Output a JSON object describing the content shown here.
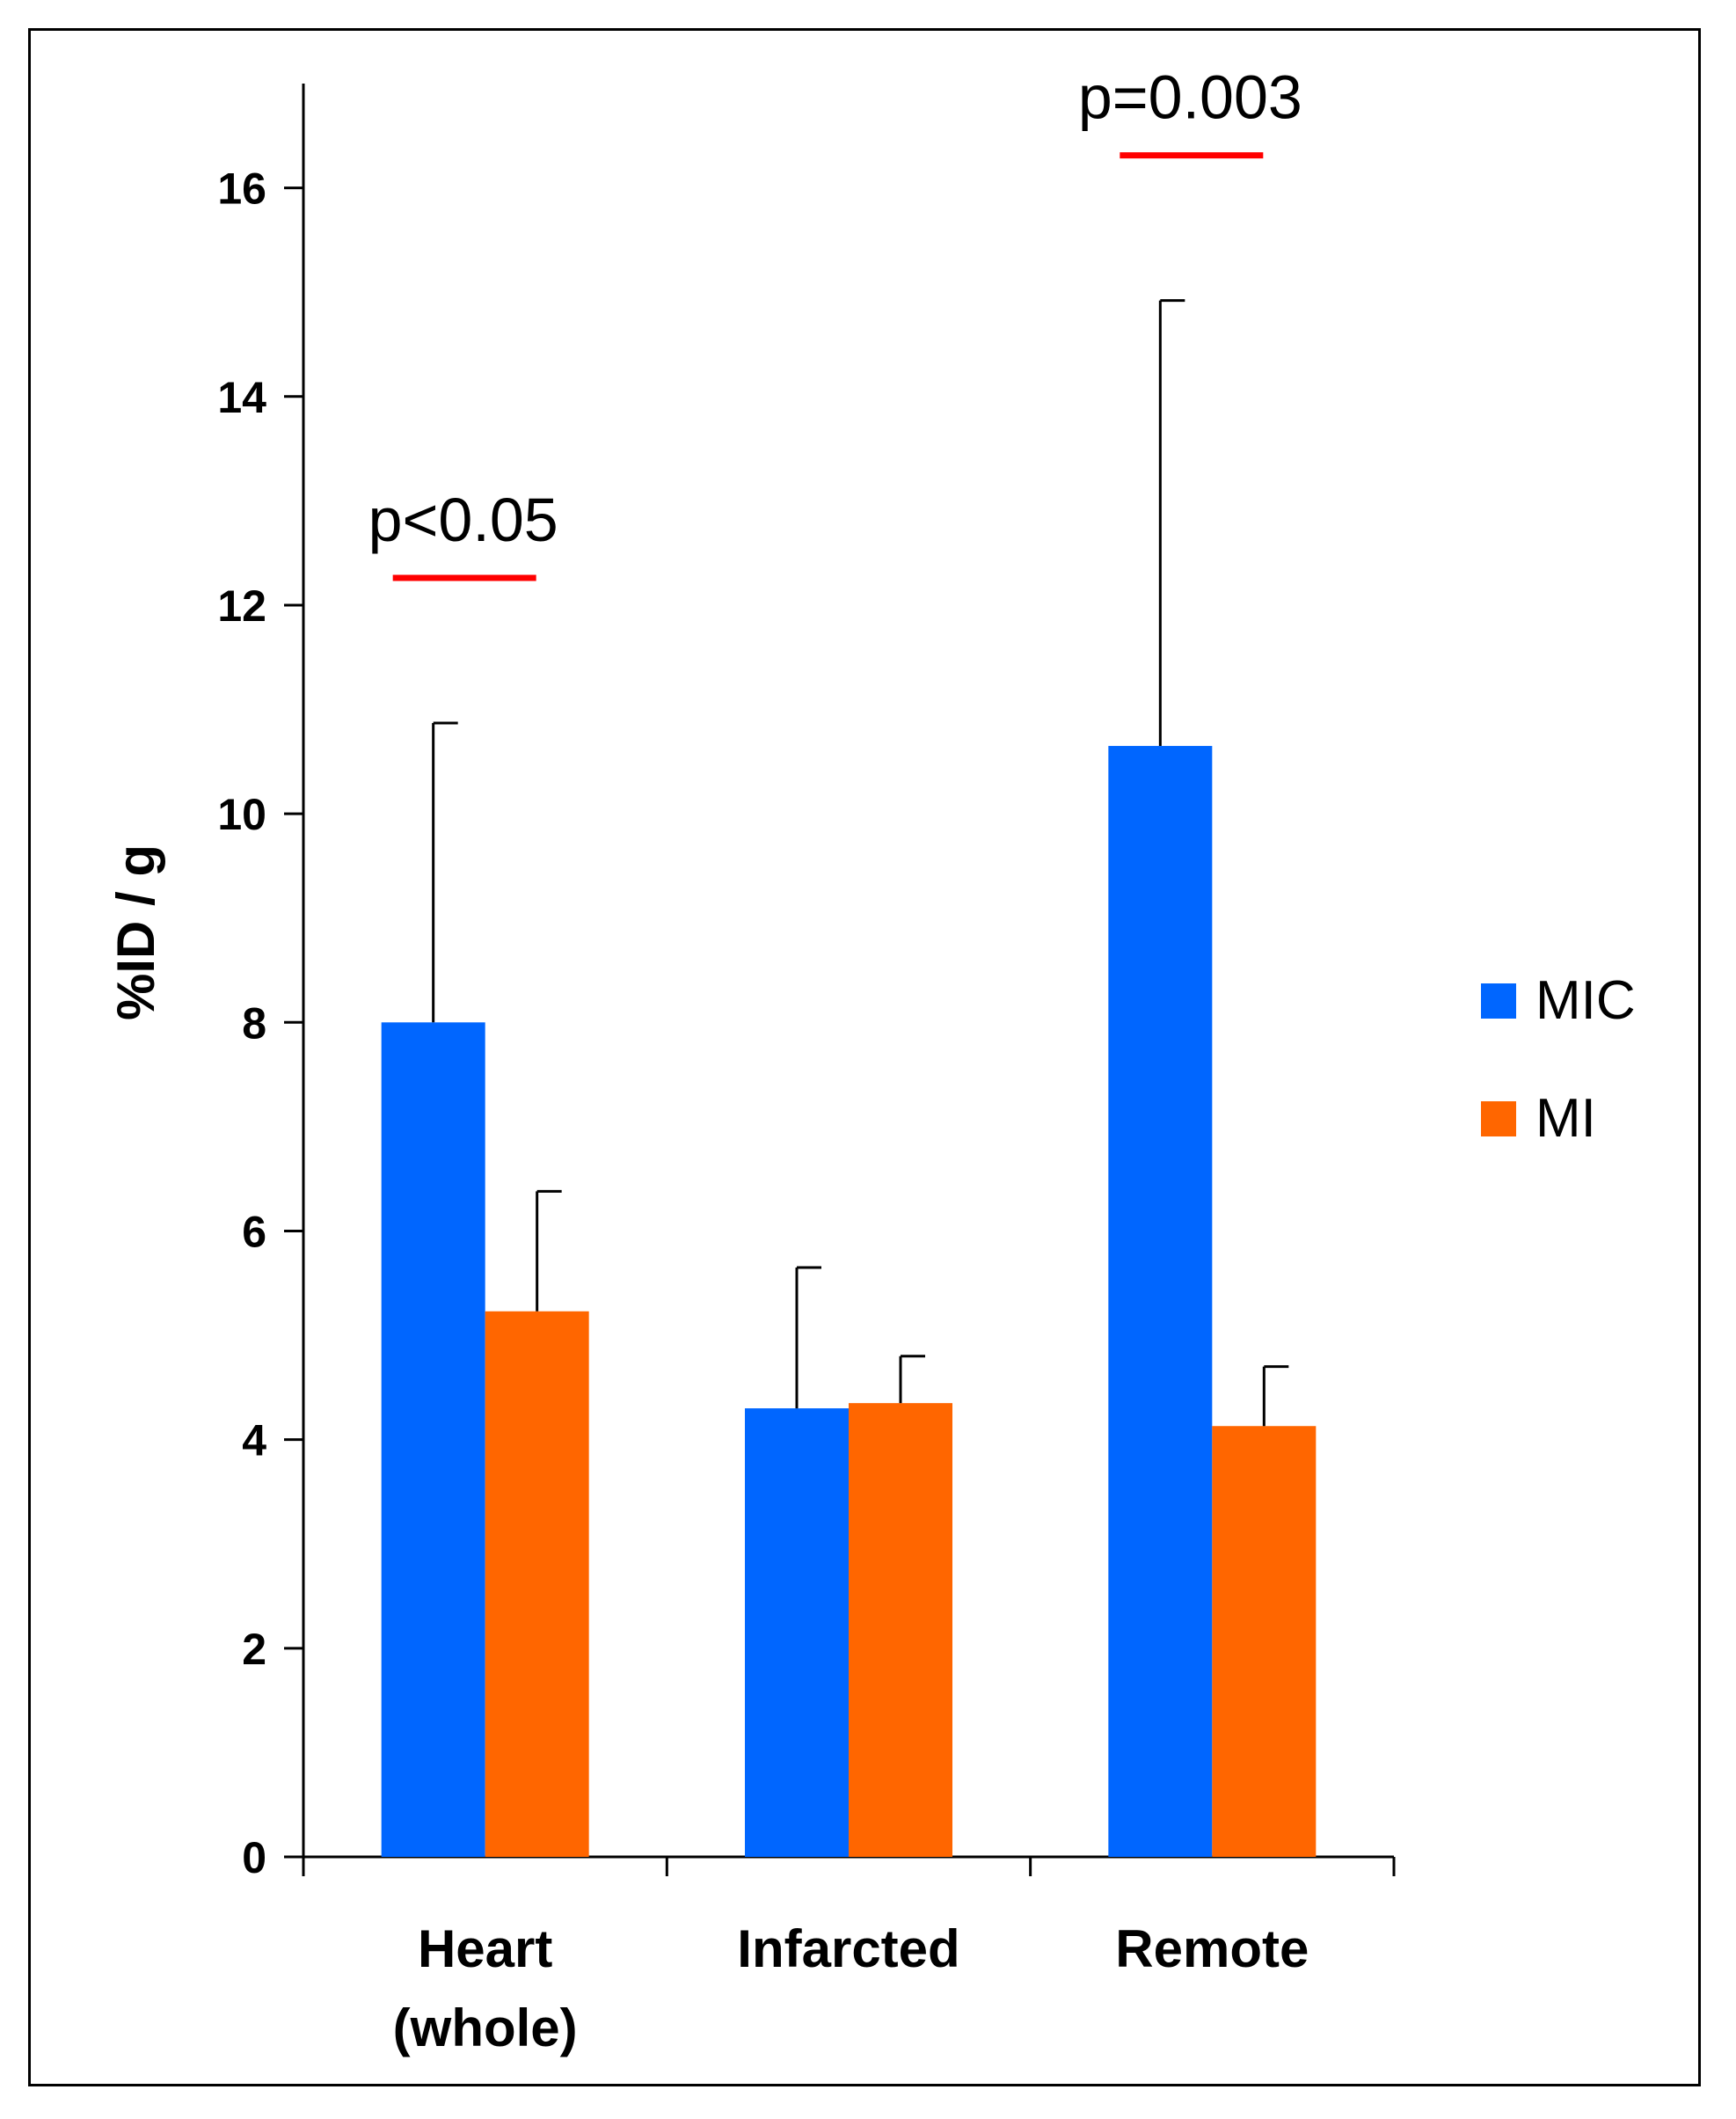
{
  "chart_data": {
    "type": "bar",
    "title": "",
    "xlabel": "",
    "ylabel": "%ID / g",
    "ylim": [
      0,
      17
    ],
    "yticks": [
      0,
      2,
      4,
      6,
      8,
      10,
      12,
      14,
      16
    ],
    "categories": [
      [
        "Heart",
        "(whole)"
      ],
      [
        "Infarcted"
      ],
      [
        "Remote"
      ]
    ],
    "series": [
      {
        "name": "MIC",
        "color": "#0066FF",
        "values": [
          8.0,
          4.3,
          10.65
        ],
        "errors": [
          2.87,
          1.35,
          4.27
        ]
      },
      {
        "name": "MI",
        "color": "#FF6600",
        "values": [
          5.23,
          4.35,
          4.13
        ],
        "errors": [
          1.15,
          0.45,
          0.57
        ]
      }
    ],
    "annotations": [
      {
        "category_index": 0,
        "text": "p<0.05",
        "line_color": "#FF0000"
      },
      {
        "category_index": 2,
        "text": "p=0.003",
        "line_color": "#FF0000"
      }
    ],
    "legend_position": "right",
    "grid": false
  }
}
